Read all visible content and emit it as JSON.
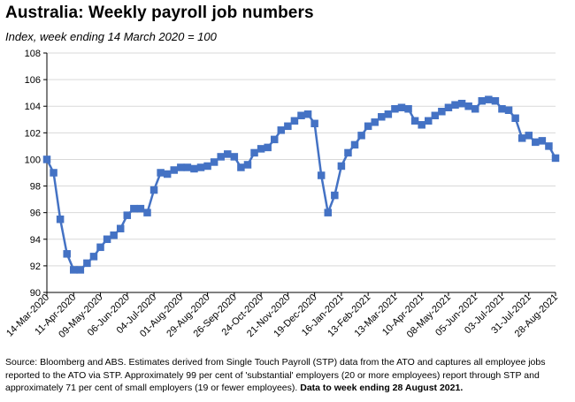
{
  "title": "Australia:  Weekly payroll job numbers",
  "subtitle": "Index, week ending 14 March 2020 = 100",
  "source": {
    "text": "Source: Bloomberg and ABS.  Estimates derived from Single Touch Payroll (STP) data from the ATO and captures all employee jobs reported to the ATO via STP.  Approximately 99 per cent of 'substantial' employers (20 or more employees) report through STP and approximately 71 per cent of small employers (19 or fewer employees).",
    "bold_text": "Data to week ending 28 August 2021."
  },
  "colors": {
    "series": "#4472C4",
    "grid": "#d9d9d9",
    "axis": "#000000"
  },
  "chart_data": {
    "type": "line",
    "title": "Australia:  Weekly payroll job numbers",
    "subtitle": "Index, week ending 14 March 2020 = 100",
    "xlabel": "",
    "ylabel": "",
    "ylim": [
      90,
      108
    ],
    "yticks": [
      90,
      92,
      94,
      96,
      98,
      100,
      102,
      104,
      106,
      108
    ],
    "grid": true,
    "legend": "none",
    "x_tick_labels": [
      "14-Mar-2020",
      "11-Apr-2020",
      "09-May-2020",
      "06-Jun-2020",
      "04-Jul-2020",
      "01-Aug-2020",
      "29-Aug-2020",
      "26-Sep-2020",
      "24-Oct-2020",
      "21-Nov-2020",
      "19-Dec-2020",
      "16-Jan-2021",
      "13-Feb-2021",
      "13-Mar-2021",
      "10-Apr-2021",
      "08-May-2021",
      "05-Jun-2021",
      "03-Jul-2021",
      "31-Jul-2021",
      "28-Aug-2021"
    ],
    "series": [
      {
        "values": [
          100.0,
          99.0,
          95.5,
          92.9,
          91.7,
          91.7,
          92.2,
          92.7,
          93.4,
          94.0,
          94.3,
          94.8,
          95.8,
          96.3,
          96.3,
          96.0,
          97.7,
          99.0,
          98.9,
          99.2,
          99.4,
          99.4,
          99.3,
          99.4,
          99.5,
          99.8,
          100.2,
          100.4,
          100.2,
          99.4,
          99.6,
          100.5,
          100.8,
          100.9,
          101.5,
          102.2,
          102.5,
          102.9,
          103.3,
          103.4,
          102.7,
          98.8,
          96.0,
          97.3,
          99.5,
          100.5,
          101.1,
          101.8,
          102.5,
          102.8,
          103.2,
          103.4,
          103.8,
          103.9,
          103.8,
          102.9,
          102.6,
          102.9,
          103.3,
          103.6,
          103.9,
          104.1,
          104.2,
          104.0,
          103.8,
          104.4,
          104.5,
          104.4,
          103.8,
          103.7,
          103.1,
          101.6,
          101.8,
          101.3,
          101.4,
          101.0,
          100.1
        ]
      }
    ]
  }
}
